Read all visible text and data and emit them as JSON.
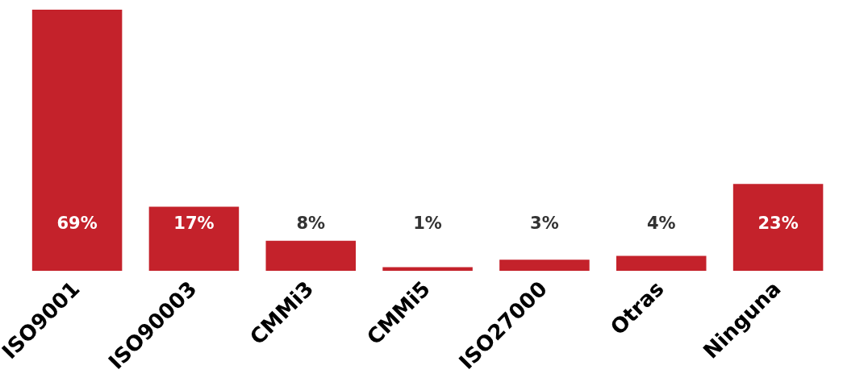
{
  "chart_data": {
    "type": "bar",
    "categories": [
      "ISO9001",
      "ISO90003",
      "CMMi3",
      "CMMi5",
      "ISO27000",
      "Otras",
      "Ninguna"
    ],
    "values": [
      69,
      17,
      8,
      1,
      3,
      4,
      23
    ],
    "value_labels": [
      "69%",
      "17%",
      "8%",
      "1%",
      "3%",
      "4%",
      "23%"
    ],
    "color": "#c4222b",
    "grid": false,
    "legend": false
  }
}
